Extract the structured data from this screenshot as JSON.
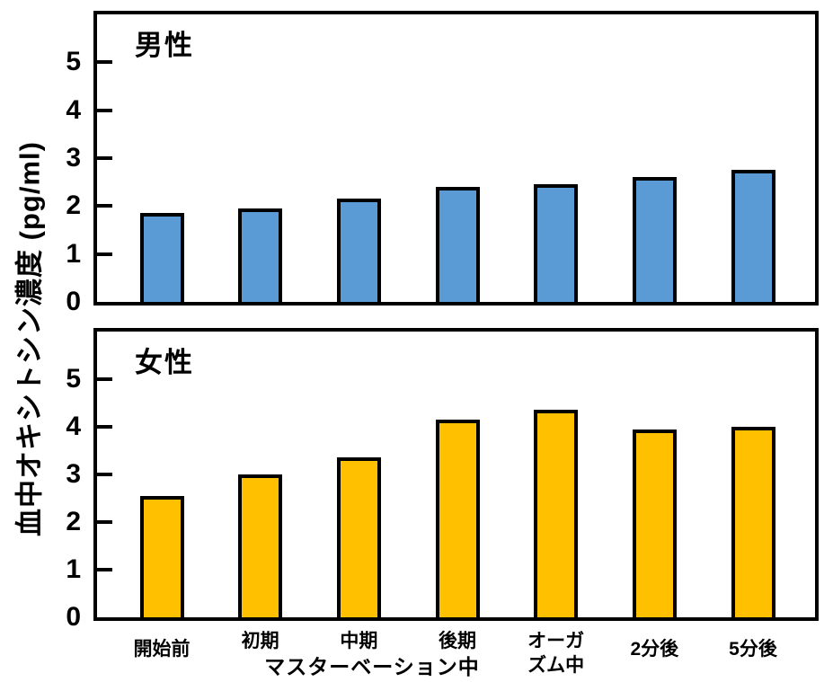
{
  "figure": {
    "y_axis_title": "血中オキシトシン濃度 (pg/ml)"
  },
  "chart_data": {
    "type": "bar",
    "title": "",
    "ylabel": "血中オキシトシン濃度 (pg/ml)",
    "xlabel": "",
    "ylim": [
      0,
      6
    ],
    "yticks": [
      0,
      1,
      2,
      3,
      4,
      5
    ],
    "grid": false,
    "legend": "none",
    "categories": [
      "開始前",
      "初期",
      "中期",
      "後期",
      "オーガ\nズム中",
      "2分後",
      "5分後"
    ],
    "x_group_label": "マスターベーション中",
    "bar_edge_color": "#000000",
    "panels": [
      {
        "title": "男性",
        "bar_color": "#5B9BD5",
        "values": [
          1.85,
          1.95,
          2.15,
          2.4,
          2.45,
          2.6,
          2.75
        ]
      },
      {
        "title": "女性",
        "bar_color": "#FFC000",
        "values": [
          2.55,
          3.0,
          3.35,
          4.15,
          4.35,
          3.95,
          4.0
        ]
      }
    ]
  }
}
